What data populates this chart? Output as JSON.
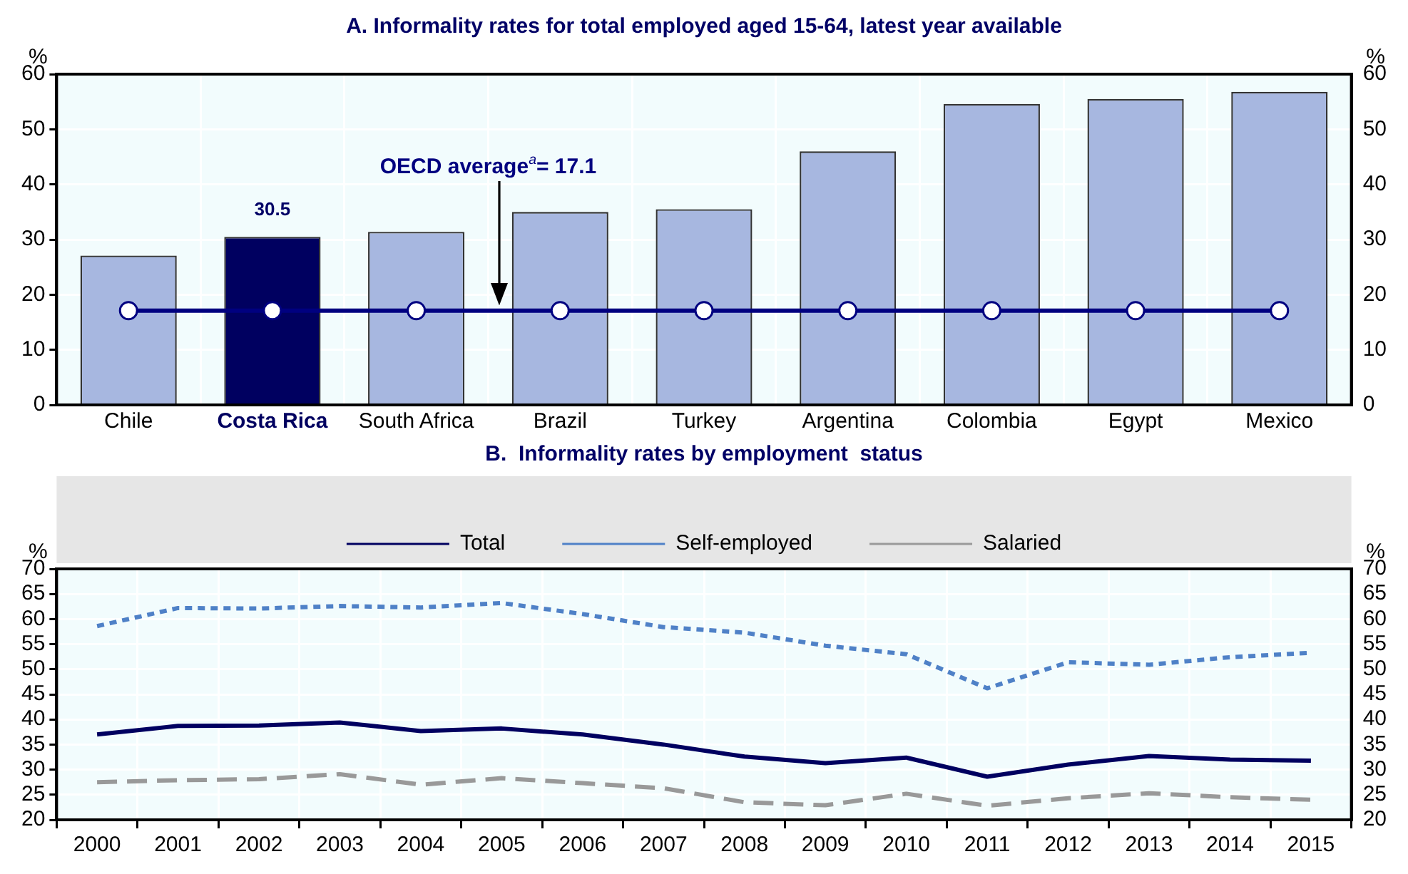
{
  "chart_data": [
    {
      "type": "bar",
      "title": "A. Informality rates for total employed aged 15-64, latest year available",
      "ylabel": "%",
      "y2label": "%",
      "categories": [
        "Chile",
        "Costa Rica",
        "South Africa",
        "Brazil",
        "Turkey",
        "Argentina",
        "Colombia",
        "Egypt",
        "Mexico"
      ],
      "series": [
        {
          "type": "bar",
          "values": [
            27.1,
            30.5,
            31.4,
            35.0,
            35.5,
            46.0,
            54.6,
            55.5,
            56.8
          ],
          "colors": [
            "#a7b7e0",
            "#000060",
            "#a7b7e0",
            "#a7b7e0",
            "#a7b7e0",
            "#a7b7e0",
            "#a7b7e0",
            "#a7b7e0",
            "#a7b7e0"
          ],
          "value_labels": [
            null,
            "30.5",
            null,
            null,
            null,
            null,
            null,
            null,
            null
          ]
        },
        {
          "type": "line",
          "color": "#000080",
          "marker": "circle",
          "values": [
            17.1,
            17.1,
            17.1,
            17.1,
            17.1,
            17.1,
            17.1,
            17.1,
            17.1
          ]
        }
      ],
      "annotations": [
        "OECD average$^{a}$= 17.1"
      ],
      "ylim": [
        0,
        60
      ],
      "yticks": [
        0,
        10,
        20,
        30,
        40,
        50,
        60
      ],
      "y2lim": [
        0,
        60
      ],
      "y2ticks": [
        0,
        10,
        20,
        30,
        40,
        50,
        60
      ],
      "grid": true,
      "legend": false
    },
    {
      "type": "line",
      "title": "B.  Informality rates by employment  status",
      "ylabel": "%",
      "y2label": "%",
      "categories": [
        "2000",
        "2001",
        "2002",
        "2003",
        "2004",
        "2005",
        "2006",
        "2007",
        "2008",
        "2009",
        "2010",
        "2011",
        "2012",
        "2013",
        "2014",
        "2015"
      ],
      "series": [
        {
          "name": "Total",
          "color": "#000060",
          "line_style": "solid",
          "values": [
            37,
            38.7,
            38.8,
            39.4,
            37.7,
            38.2,
            37,
            35,
            32.6,
            31.3,
            32.4,
            28.6,
            31,
            32.7,
            32,
            31.8
          ]
        },
        {
          "name": "Self-employed",
          "color": "#4f81c7",
          "line_style": "dotted",
          "values": [
            58.6,
            62.2,
            62.1,
            62.6,
            62.3,
            63.2,
            61,
            58.4,
            57.3,
            54.7,
            53,
            46.2,
            51.4,
            50.9,
            52.4,
            53.3
          ]
        },
        {
          "name": "Salaried",
          "color": "#999999",
          "line_style": "dashed",
          "values": [
            27.5,
            27.9,
            28.1,
            29.1,
            27,
            28.3,
            27.3,
            26.3,
            23.5,
            22.9,
            25.2,
            22.8,
            24.3,
            25.3,
            24.5,
            24
          ]
        }
      ],
      "ylim": [
        20,
        70
      ],
      "yticks": [
        20,
        25,
        30,
        35,
        40,
        45,
        50,
        55,
        60,
        65,
        70
      ],
      "y2lim": [
        20,
        70
      ],
      "y2ticks": [
        20,
        25,
        30,
        35,
        40,
        45,
        50,
        55,
        60,
        65,
        70
      ],
      "grid": true,
      "legend": "top"
    }
  ]
}
